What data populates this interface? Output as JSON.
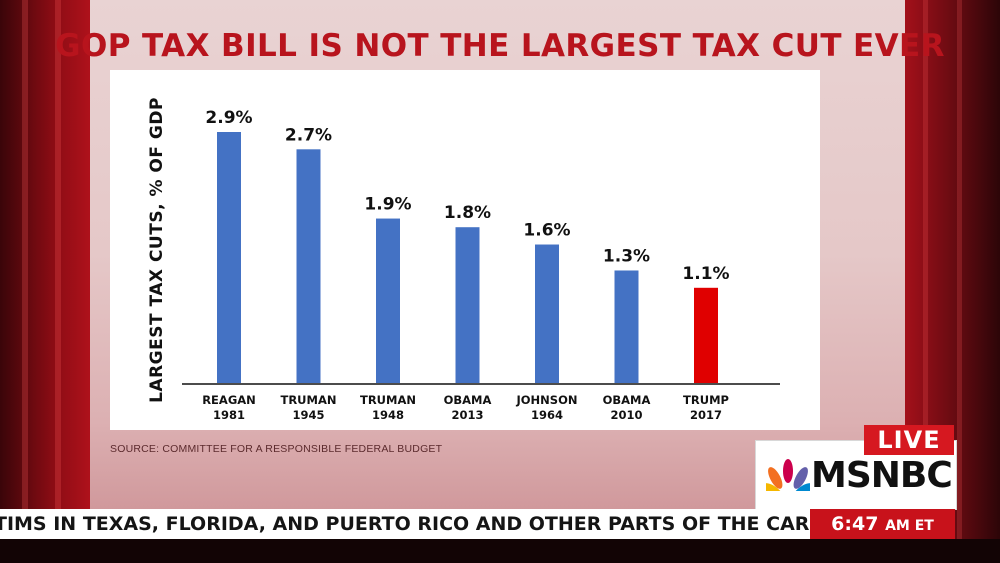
{
  "headline": "GOP TAX BILL IS NOT THE LARGEST TAX CUT EVER",
  "source": "SOURCE: COMMITTEE FOR A RESPONSIBLE FEDERAL BUDGET",
  "live_label": "LIVE",
  "network": "MSNBC",
  "ticker_text": "TIMS IN TEXAS, FLORIDA, AND PUERTO RICO AND OTHER PARTS OF THE CARIBBEAN",
  "clock": {
    "time": "6:47",
    "suffix": "AM ET"
  },
  "colors": {
    "bar_default": "#4472c4",
    "bar_highlight": "#e00000",
    "headline": "#b8141d"
  },
  "chart_data": {
    "type": "bar",
    "title": "",
    "ylabel": "LARGEST TAX CUTS, % OF GDP",
    "xlabel": "",
    "ylim": [
      0,
      2.9
    ],
    "categories": [
      [
        "REAGAN",
        "1981"
      ],
      [
        "TRUMAN",
        "1945"
      ],
      [
        "TRUMAN",
        "1948"
      ],
      [
        "OBAMA",
        "2013"
      ],
      [
        "JOHNSON",
        "1964"
      ],
      [
        "OBAMA",
        "2010"
      ],
      [
        "TRUMP",
        "2017"
      ]
    ],
    "values": [
      2.9,
      2.7,
      1.9,
      1.8,
      1.6,
      1.3,
      1.1
    ],
    "value_labels": [
      "2.9%",
      "2.7%",
      "1.9%",
      "1.8%",
      "1.6%",
      "1.3%",
      "1.1%"
    ],
    "highlight_index": 6
  }
}
